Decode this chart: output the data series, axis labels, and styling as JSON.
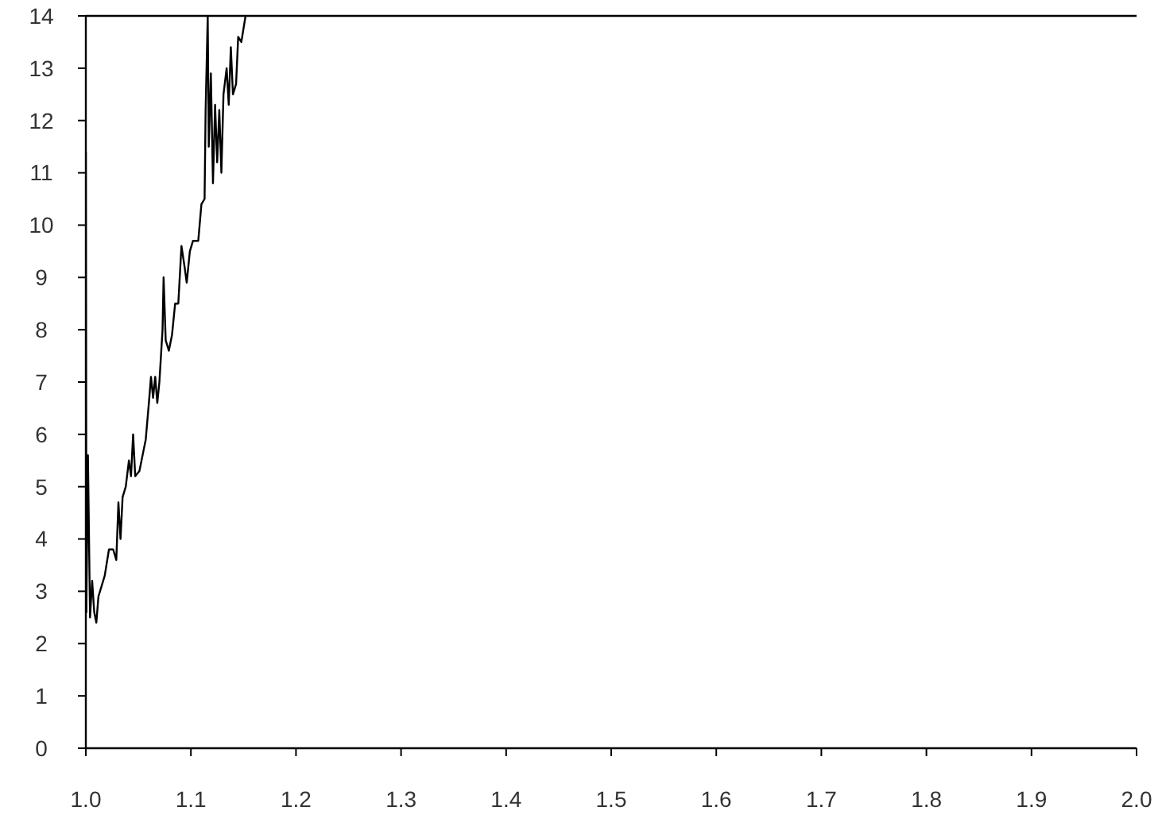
{
  "chart_data": {
    "type": "line",
    "xlim": [
      1.0,
      2.0
    ],
    "ylim": [
      0,
      14
    ],
    "xticks": [
      {
        "value": 1.0,
        "label": "1.0"
      },
      {
        "value": 1.1,
        "label": "1.1"
      },
      {
        "value": 1.2,
        "label": "1.2"
      },
      {
        "value": 1.3,
        "label": "1.3"
      },
      {
        "value": 1.4,
        "label": "1.4"
      },
      {
        "value": 1.5,
        "label": "1.5"
      },
      {
        "value": 1.6,
        "label": "1.6"
      },
      {
        "value": 1.7,
        "label": "1.7"
      },
      {
        "value": 1.8,
        "label": "1.8"
      },
      {
        "value": 1.9,
        "label": "1.9"
      },
      {
        "value": 2.0,
        "label": "2.0"
      }
    ],
    "yticks": [
      0,
      1,
      2,
      3,
      4,
      5,
      6,
      7,
      8,
      9,
      10,
      11,
      12,
      13,
      14
    ],
    "grid": false,
    "marker": "none",
    "line_style": "solid",
    "series": [
      {
        "color": "#000000",
        "x": [
          1.0,
          1.0005,
          1.002,
          1.004,
          1.006,
          1.008,
          1.01,
          1.012,
          1.018,
          1.022,
          1.026,
          1.029,
          1.031,
          1.033,
          1.035,
          1.038,
          1.041,
          1.043,
          1.045,
          1.047,
          1.051,
          1.055,
          1.057,
          1.06,
          1.062,
          1.064,
          1.066,
          1.068,
          1.07,
          1.073,
          1.074,
          1.076,
          1.079,
          1.082,
          1.085,
          1.088,
          1.091,
          1.094,
          1.096,
          1.099,
          1.102,
          1.107,
          1.11,
          1.113,
          1.114,
          1.116,
          1.117,
          1.119,
          1.121,
          1.123,
          1.125,
          1.127,
          1.129,
          1.131,
          1.134,
          1.136,
          1.138,
          1.14,
          1.143,
          1.145,
          1.148,
          1.152
        ],
        "values": [
          11.4,
          2.6,
          5.6,
          2.5,
          3.2,
          2.6,
          2.4,
          2.9,
          3.3,
          3.8,
          3.8,
          3.6,
          4.7,
          4.0,
          4.8,
          5.0,
          5.5,
          5.2,
          6.0,
          5.2,
          5.3,
          5.7,
          5.9,
          6.6,
          7.1,
          6.7,
          7.1,
          6.6,
          7.0,
          8.0,
          9.0,
          7.8,
          7.6,
          7.9,
          8.5,
          8.5,
          9.6,
          9.2,
          8.9,
          9.5,
          9.7,
          9.7,
          10.4,
          10.5,
          12.2,
          14,
          11.5,
          12.9,
          10.8,
          12.3,
          11.2,
          12.2,
          11.0,
          12.5,
          13.0,
          12.3,
          13.4,
          12.5,
          12.7,
          13.6,
          13.5,
          14
        ]
      }
    ]
  }
}
